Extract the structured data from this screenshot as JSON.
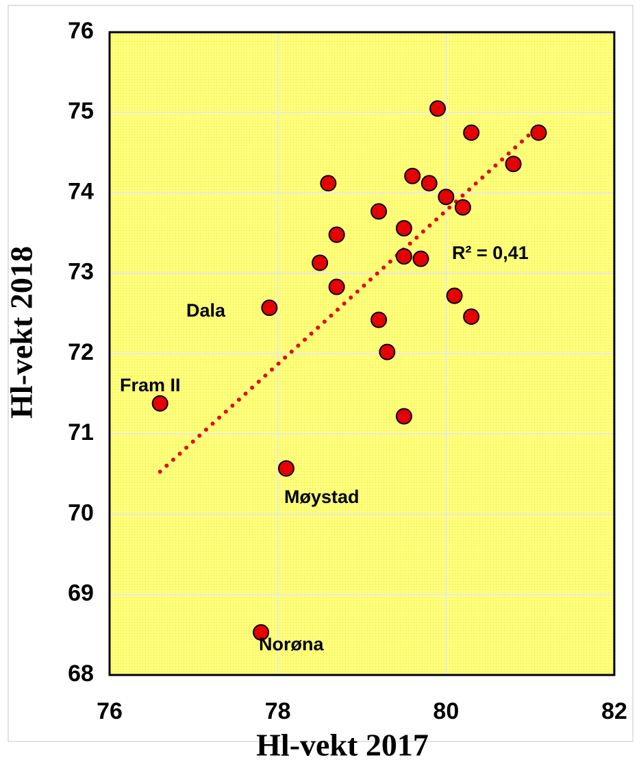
{
  "chart_data": {
    "type": "scatter",
    "x_label": "Hl-vekt 2017",
    "y_label": "Hl-vekt 2018",
    "xlim": [
      76,
      82
    ],
    "xticks": [
      76,
      78,
      80,
      82
    ],
    "ylim": [
      68,
      76
    ],
    "yticks": [
      68,
      69,
      70,
      71,
      72,
      73,
      74,
      75,
      76
    ],
    "grid": true,
    "color": "#e60000",
    "x": [
      79.9,
      80.3,
      81.1,
      80.8,
      79.6,
      79.8,
      78.6,
      80.0,
      80.2,
      79.2,
      79.5,
      78.7,
      79.5,
      79.7,
      78.5,
      78.7,
      80.1,
      77.9,
      80.3,
      79.2,
      79.3,
      76.6,
      79.5,
      78.1,
      77.8
    ],
    "values": [
      75.05,
      74.75,
      74.75,
      74.36,
      74.21,
      74.12,
      74.12,
      73.95,
      73.82,
      73.77,
      73.56,
      73.48,
      73.21,
      73.18,
      73.13,
      72.83,
      72.72,
      72.57,
      72.46,
      72.42,
      72.02,
      71.38,
      71.22,
      70.57,
      68.53
    ],
    "trendline": {
      "color": "#e60000",
      "x": [
        76.6,
        81.1
      ],
      "values": [
        70.53,
        74.83
      ]
    },
    "annotations": [
      "R² = 0,41",
      "Dala",
      "Fram II",
      "Møystad",
      "Norøna"
    ]
  }
}
